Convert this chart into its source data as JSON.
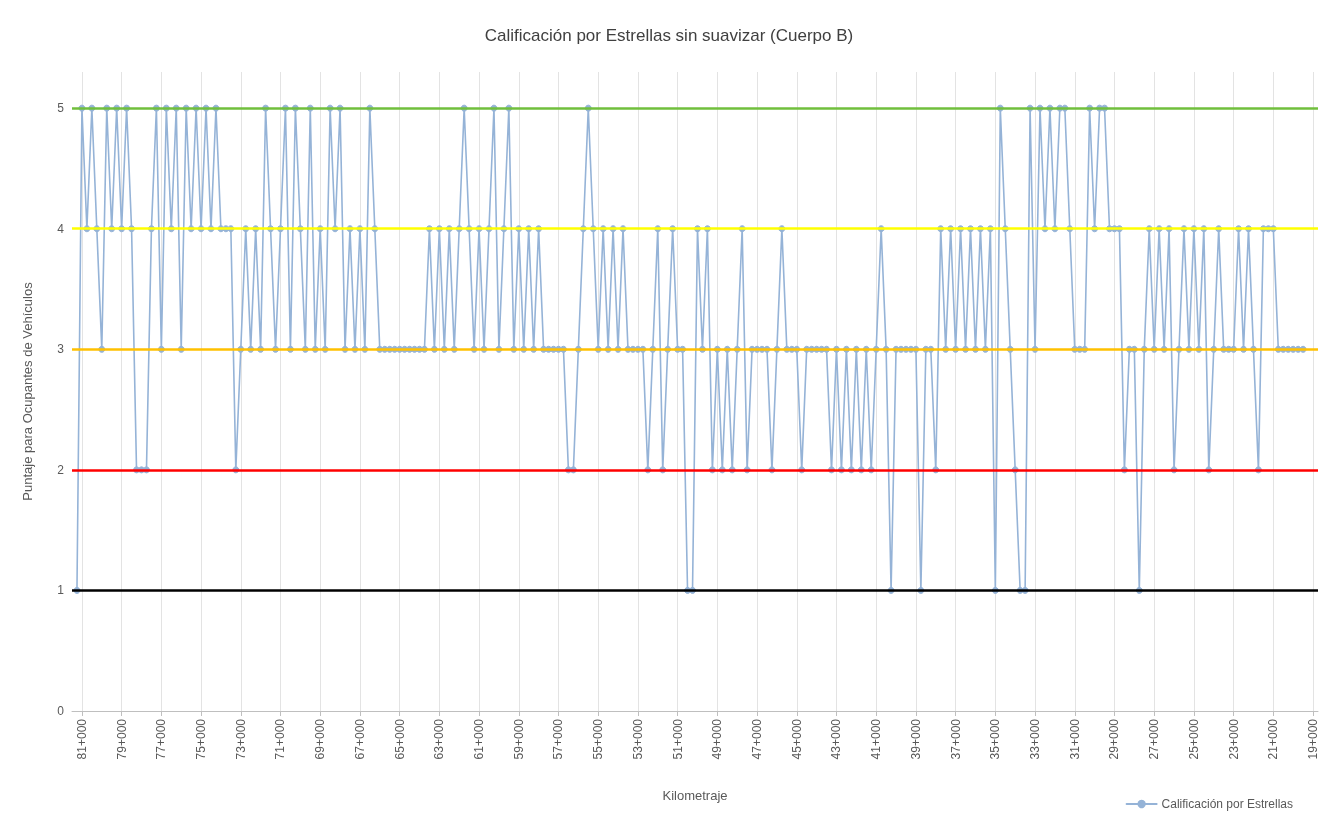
{
  "chart_data": {
    "type": "line",
    "title": "Calificación por Estrellas sin suavizar (Cuerpo B)",
    "xlabel": "Kilometraje",
    "ylabel": "Puntaje para Ocupantes de Vehículos",
    "categories": [
      null,
      null,
      "81+000",
      null,
      null,
      null,
      null,
      null,
      null,
      null,
      "79+000",
      null,
      null,
      null,
      null,
      null,
      null,
      null,
      "77+000",
      null,
      null,
      null,
      null,
      null,
      null,
      null,
      "75+000",
      null,
      null,
      null,
      null,
      null,
      null,
      null,
      "73+000",
      null,
      null,
      null,
      null,
      null,
      null,
      null,
      "71+000",
      null,
      null,
      null,
      null,
      null,
      null,
      null,
      "69+000",
      null,
      null,
      null,
      null,
      null,
      null,
      null,
      "67+000",
      null,
      null,
      null,
      null,
      null,
      null,
      null,
      "65+000",
      null,
      null,
      null,
      null,
      null,
      null,
      null,
      "63+000",
      null,
      null,
      null,
      null,
      null,
      null,
      null,
      "61+000",
      null,
      null,
      null,
      null,
      null,
      null,
      null,
      "59+000",
      null,
      null,
      null,
      null,
      null,
      null,
      null,
      "57+000",
      null,
      null,
      null,
      null,
      null,
      null,
      null,
      "55+000",
      null,
      null,
      null,
      null,
      null,
      null,
      null,
      "53+000",
      null,
      null,
      null,
      null,
      null,
      null,
      null,
      "51+000",
      null,
      null,
      null,
      null,
      null,
      null,
      null,
      "49+000",
      null,
      null,
      null,
      null,
      null,
      null,
      null,
      "47+000",
      null,
      null,
      null,
      null,
      null,
      null,
      null,
      "45+000",
      null,
      null,
      null,
      null,
      null,
      null,
      null,
      "43+000",
      null,
      null,
      null,
      null,
      null,
      null,
      null,
      "41+000",
      null,
      null,
      null,
      null,
      null,
      null,
      null,
      "39+000",
      null,
      null,
      null,
      null,
      null,
      null,
      null,
      "37+000",
      null,
      null,
      null,
      null,
      null,
      null,
      null,
      "35+000",
      null,
      null,
      null,
      null,
      null,
      null,
      null,
      "33+000",
      null,
      null,
      null,
      null,
      null,
      null,
      null,
      "31+000",
      null,
      null,
      null,
      null,
      null,
      null,
      null,
      "29+000",
      null,
      null,
      null,
      null,
      null,
      null,
      null,
      "27+000",
      null,
      null,
      null,
      null,
      null,
      null,
      null,
      "25+000",
      null,
      null,
      null,
      null,
      null,
      null,
      null,
      "23+000",
      null,
      null,
      null,
      null,
      null,
      null,
      null,
      "21+000",
      null,
      null,
      null,
      null,
      null,
      null,
      null,
      "19+000",
      null
    ],
    "ylim": [
      0,
      5.3
    ],
    "yticks": [
      0,
      1,
      2,
      3,
      4,
      5
    ],
    "grid": "x",
    "legend": "bottom right",
    "marker": "circle",
    "line_style": "solid",
    "ref_lines": [
      {
        "axis": "y",
        "value": 5,
        "color": "#70bf3c"
      },
      {
        "axis": "y",
        "value": 4,
        "color": "#ffff00"
      },
      {
        "axis": "y",
        "value": 3,
        "color": "#ffc000"
      },
      {
        "axis": "y",
        "value": 2,
        "color": "#ff0000"
      },
      {
        "axis": "y",
        "value": 1,
        "color": "#000000"
      }
    ],
    "series": [
      {
        "name": "Calificación por Estrellas",
        "color": "#95b3d7",
        "values": [
          null,
          1,
          5,
          4,
          5,
          4,
          3,
          5,
          4,
          5,
          4,
          5,
          4,
          2,
          2,
          2,
          4,
          5,
          3,
          5,
          4,
          5,
          3,
          5,
          4,
          5,
          4,
          5,
          4,
          5,
          4,
          4,
          4,
          2,
          3,
          4,
          3,
          4,
          3,
          5,
          4,
          3,
          4,
          5,
          3,
          5,
          4,
          3,
          5,
          3,
          4,
          3,
          5,
          4,
          5,
          3,
          4,
          3,
          4,
          3,
          5,
          4,
          3,
          3,
          3,
          3,
          3,
          3,
          3,
          3,
          3,
          3,
          4,
          3,
          4,
          3,
          4,
          3,
          4,
          5,
          4,
          3,
          4,
          3,
          4,
          5,
          3,
          4,
          5,
          3,
          4,
          3,
          4,
          3,
          4,
          3,
          3,
          3,
          3,
          3,
          2,
          2,
          3,
          4,
          5,
          4,
          3,
          4,
          3,
          4,
          3,
          4,
          3,
          3,
          3,
          3,
          2,
          3,
          4,
          2,
          3,
          4,
          3,
          3,
          1,
          1,
          4,
          3,
          4,
          2,
          3,
          2,
          3,
          2,
          3,
          4,
          2,
          3,
          3,
          3,
          3,
          2,
          3,
          4,
          3,
          3,
          3,
          2,
          3,
          3,
          3,
          3,
          3,
          2,
          3,
          2,
          3,
          2,
          3,
          2,
          3,
          2,
          3,
          4,
          3,
          1,
          3,
          3,
          3,
          3,
          3,
          1,
          3,
          3,
          2,
          4,
          3,
          4,
          3,
          4,
          3,
          4,
          3,
          4,
          3,
          4,
          1,
          5,
          4,
          3,
          2,
          1,
          1,
          5,
          3,
          5,
          4,
          5,
          4,
          5,
          5,
          4,
          3,
          3,
          3,
          5,
          4,
          5,
          5,
          4,
          4,
          4,
          2,
          3,
          3,
          1,
          3,
          4,
          3,
          4,
          3,
          4,
          2,
          3,
          4,
          3,
          4,
          3,
          4,
          2,
          3,
          4,
          3,
          3,
          3,
          4,
          3,
          4,
          3,
          2,
          4,
          4,
          4,
          3,
          3,
          3,
          3,
          3,
          3,
          null,
          null,
          null
        ]
      }
    ]
  }
}
